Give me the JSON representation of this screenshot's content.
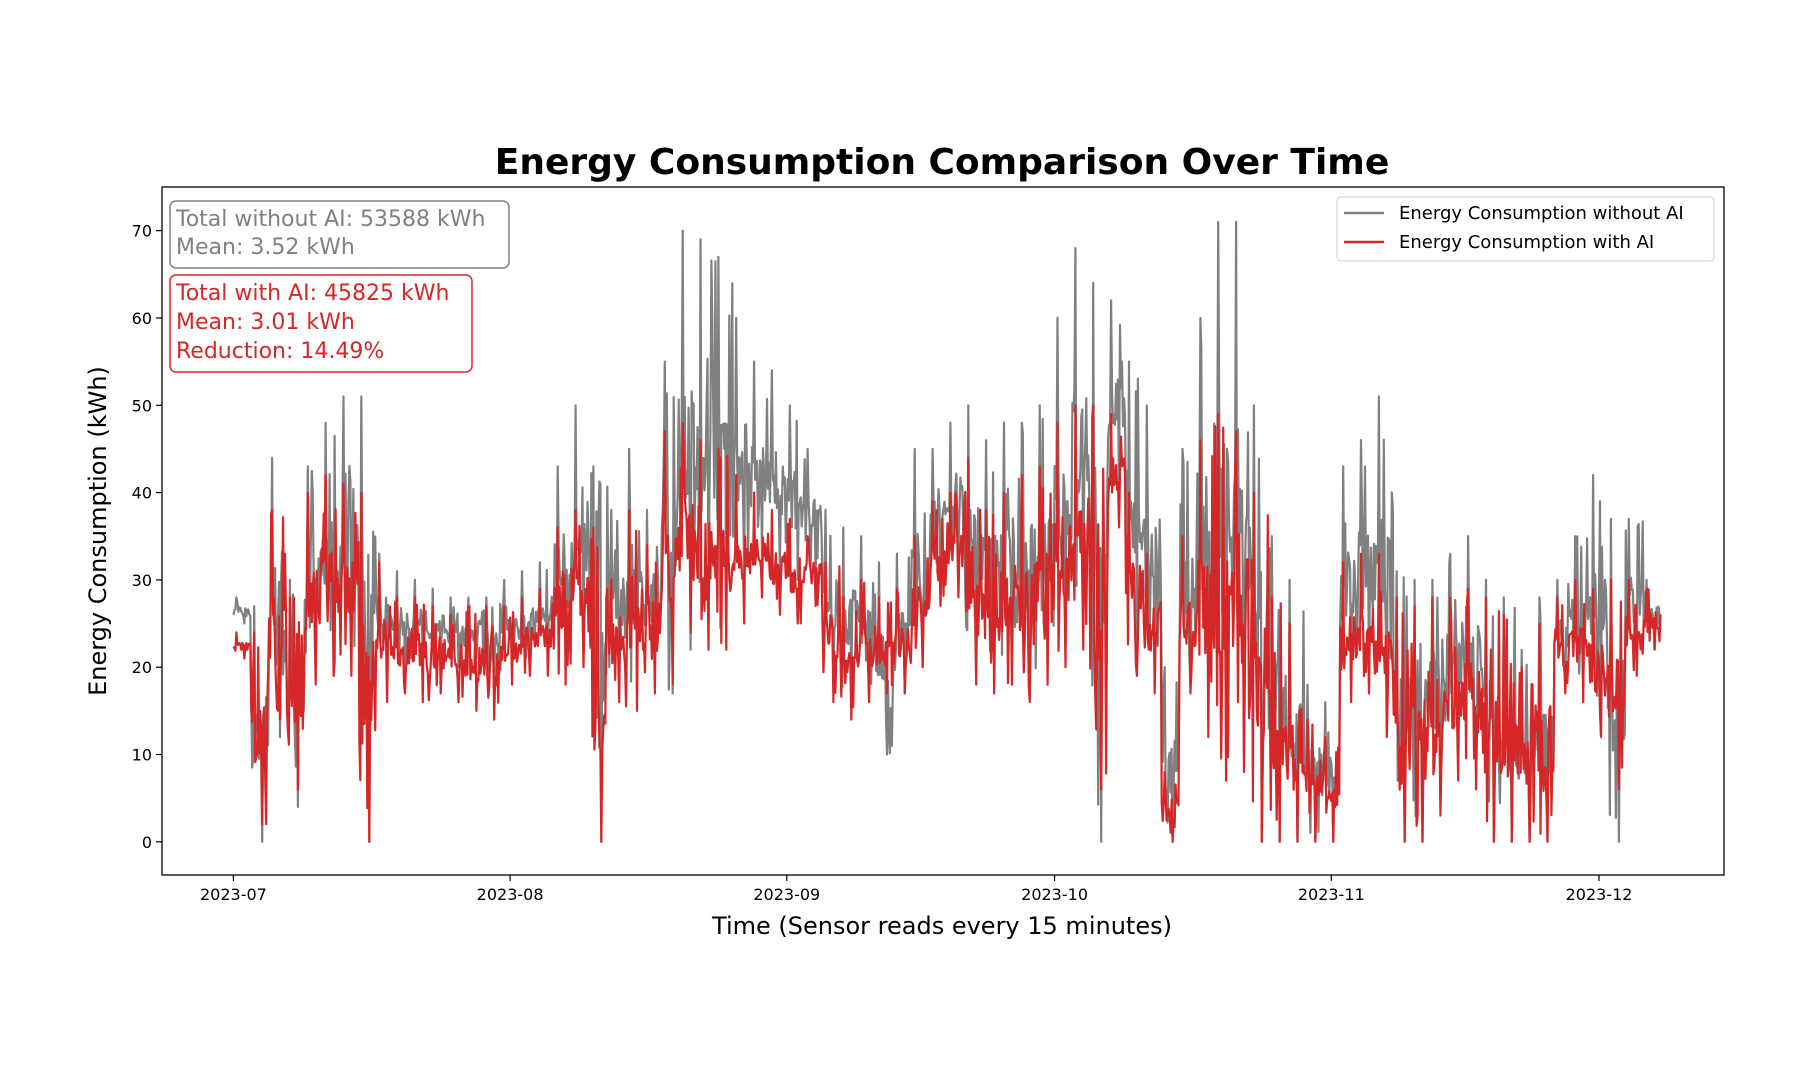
{
  "chart_data": {
    "type": "line",
    "title": "Energy Consumption Comparison Over Time",
    "xlabel": "Time (Sensor reads every 15 minutes)",
    "ylabel": "Energy Consumption (kWh)",
    "xlim": [
      "2023-06-23",
      "2023-12-15"
    ],
    "ylim": [
      -3.8,
      75
    ],
    "x_ticks": [
      "2023-07",
      "2023-08",
      "2023-09",
      "2023-10",
      "2023-11",
      "2023-12"
    ],
    "x_tick_dates": [
      "2023-07-01",
      "2023-08-01",
      "2023-09-01",
      "2023-10-01",
      "2023-11-01",
      "2023-12-01"
    ],
    "y_ticks": [
      0,
      10,
      20,
      30,
      40,
      50,
      60,
      70
    ],
    "grid": false,
    "legend_position": "top-right",
    "note": "",
    "x": [
      "2023-07-01",
      "2023-07-03",
      "2023-07-05",
      "2023-07-07",
      "2023-07-09",
      "2023-07-11",
      "2023-07-13",
      "2023-07-15",
      "2023-07-17",
      "2023-07-19",
      "2023-07-21",
      "2023-07-23",
      "2023-07-25",
      "2023-07-27",
      "2023-07-29",
      "2023-07-31",
      "2023-08-02",
      "2023-08-04",
      "2023-08-06",
      "2023-08-08",
      "2023-08-10",
      "2023-08-12",
      "2023-08-14",
      "2023-08-16",
      "2023-08-18",
      "2023-08-20",
      "2023-08-22",
      "2023-08-24",
      "2023-08-26",
      "2023-08-28",
      "2023-08-30",
      "2023-09-01",
      "2023-09-03",
      "2023-09-05",
      "2023-09-07",
      "2023-09-09",
      "2023-09-11",
      "2023-09-13",
      "2023-09-15",
      "2023-09-17",
      "2023-09-19",
      "2023-09-21",
      "2023-09-23",
      "2023-09-25",
      "2023-09-27",
      "2023-09-29",
      "2023-10-01",
      "2023-10-03",
      "2023-10-05",
      "2023-10-07",
      "2023-10-09",
      "2023-10-11",
      "2023-10-13",
      "2023-10-15",
      "2023-10-17",
      "2023-10-19",
      "2023-10-21",
      "2023-10-23",
      "2023-10-25",
      "2023-10-27",
      "2023-10-29",
      "2023-10-31",
      "2023-11-02",
      "2023-11-04",
      "2023-11-06",
      "2023-11-08",
      "2023-11-10",
      "2023-11-12",
      "2023-11-14",
      "2023-11-16",
      "2023-11-18",
      "2023-11-20",
      "2023-11-22",
      "2023-11-24",
      "2023-11-26",
      "2023-11-28",
      "2023-11-30",
      "2023-12-02",
      "2023-12-04",
      "2023-12-06"
    ],
    "series": [
      {
        "name": "Energy Consumption without AI",
        "color": "#808080",
        "min": [
          25,
          0,
          12,
          4,
          20,
          20,
          21,
          0,
          20,
          20,
          21,
          21,
          20,
          21,
          19,
          20,
          21,
          22,
          20,
          22,
          0,
          18,
          17,
          19,
          17,
          22,
          25,
          23,
          30,
          32,
          31,
          30,
          30,
          18,
          17,
          18,
          10,
          17,
          20,
          30,
          33,
          20,
          18,
          20,
          18,
          20,
          22,
          25,
          0,
          40,
          22,
          18,
          0,
          18,
          14,
          8,
          10,
          0,
          0,
          0,
          0,
          0,
          18,
          18,
          15,
          0,
          0,
          5,
          10,
          8,
          0,
          0,
          0,
          0,
          19,
          18,
          13,
          0,
          20,
          22
        ],
        "max": [
          28,
          27,
          44,
          30,
          43,
          48,
          51,
          51,
          33,
          31,
          30,
          29,
          28,
          28,
          28,
          30,
          31,
          32,
          43,
          50,
          43,
          38,
          45,
          38,
          55,
          70,
          69,
          67,
          60,
          55,
          54,
          50,
          45,
          38,
          36,
          35,
          32,
          33,
          45,
          45,
          48,
          50,
          46,
          48,
          48,
          50,
          60,
          68,
          64,
          62,
          55,
          50,
          20,
          45,
          60,
          71,
          71,
          50,
          35,
          30,
          18,
          16,
          43,
          46,
          51,
          31,
          30,
          30,
          33,
          35,
          30,
          28,
          22,
          28,
          30,
          35,
          42,
          37,
          37,
          30
        ]
      },
      {
        "name": "Energy Consumption with AI",
        "color": "#d62728",
        "min": [
          21,
          2,
          14,
          6,
          18,
          19,
          19,
          0,
          16,
          17,
          16,
          17,
          16,
          15,
          14,
          18,
          19,
          19,
          18,
          20,
          0,
          16,
          15,
          17,
          18,
          24,
          22,
          22,
          25,
          28,
          26,
          25,
          27,
          16,
          14,
          16,
          17,
          17,
          20,
          27,
          28,
          18,
          17,
          18,
          16,
          18,
          20,
          22,
          6,
          36,
          19,
          17,
          0,
          17,
          12,
          7,
          8,
          0,
          0,
          0,
          0,
          0,
          16,
          17,
          12,
          0,
          0,
          3,
          7,
          6,
          0,
          0,
          0,
          0,
          17,
          16,
          12,
          6,
          19,
          22
        ],
        "max": [
          24,
          24,
          38,
          28,
          40,
          42,
          41,
          40,
          32,
          28,
          28,
          27,
          26,
          27,
          27,
          27,
          28,
          29,
          36,
          38,
          36,
          30,
          38,
          34,
          47,
          48,
          46,
          45,
          42,
          40,
          38,
          37,
          35,
          32,
          28,
          30,
          28,
          29,
          35,
          39,
          40,
          44,
          38,
          40,
          42,
          43,
          48,
          50,
          50,
          49,
          40,
          33,
          8,
          35,
          46,
          49,
          47,
          40,
          28,
          25,
          14,
          12,
          32,
          33,
          33,
          28,
          27,
          28,
          28,
          29,
          28,
          26,
          20,
          25,
          28,
          30,
          29,
          30,
          30,
          29
        ]
      }
    ],
    "annotations": [
      {
        "lines": [
          "Total without AI: 53588 kWh",
          "Mean: 3.52 kWh"
        ],
        "color": "#808080"
      },
      {
        "lines": [
          "Total with AI: 45825 kWh",
          "Mean: 3.01 kWh",
          "Reduction: 14.49%"
        ],
        "color": "#d62728"
      }
    ]
  }
}
